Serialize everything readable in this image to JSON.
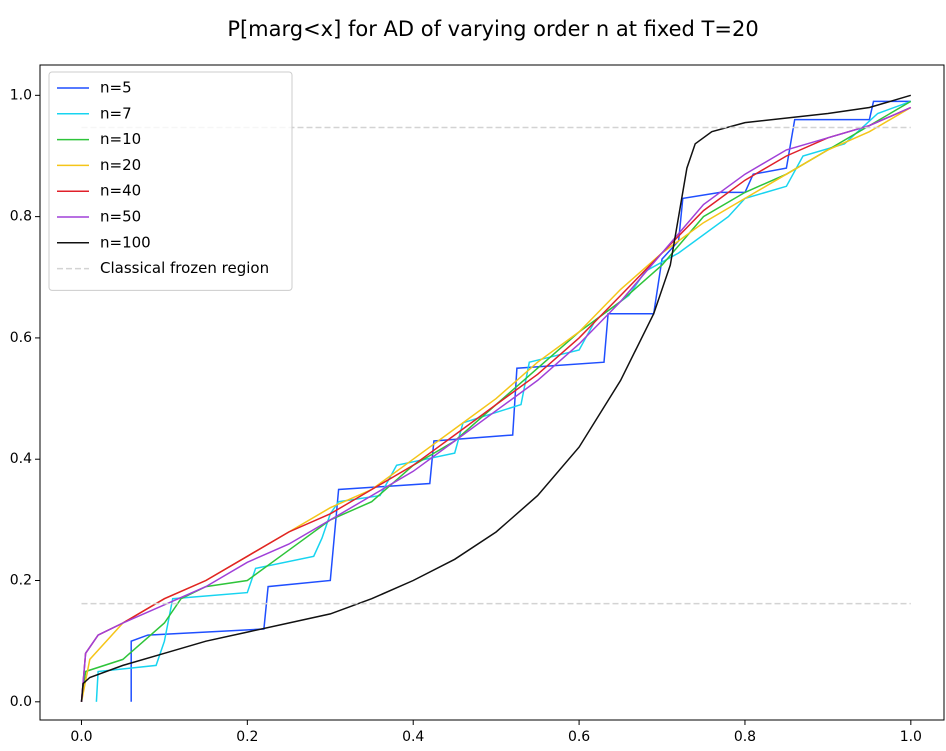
{
  "chart_data": {
    "type": "line",
    "title": "P[marg<x] for AD of varying order n at fixed T=20",
    "xlim": [
      -0.05,
      1.04
    ],
    "ylim": [
      -0.03,
      1.05
    ],
    "xticks": [
      {
        "value": 0,
        "label": "0.0"
      },
      0.2,
      0.4,
      0.6,
      0.8,
      {
        "value": 1,
        "label": "1.0"
      }
    ],
    "yticks": [
      {
        "value": 0,
        "label": "0.0"
      },
      0.2,
      0.4,
      0.6,
      0.8,
      {
        "value": 1,
        "label": "1.0"
      }
    ],
    "legend": "upper left",
    "series": [
      {
        "name": "n=5",
        "color": "#1f4fff",
        "x": [
          0.06,
          0.06,
          0.08,
          0.22,
          0.225,
          0.3,
          0.31,
          0.42,
          0.425,
          0.52,
          0.525,
          0.63,
          0.635,
          0.69,
          0.7,
          0.72,
          0.725,
          0.77,
          0.8,
          0.81,
          0.85,
          0.86,
          0.95,
          0.955,
          1.0
        ],
        "values": [
          0,
          0.1,
          0.11,
          0.12,
          0.19,
          0.2,
          0.35,
          0.36,
          0.43,
          0.44,
          0.55,
          0.56,
          0.64,
          0.64,
          0.73,
          0.76,
          0.83,
          0.84,
          0.84,
          0.87,
          0.88,
          0.96,
          0.96,
          0.99,
          0.99
        ]
      },
      {
        "name": "n=7",
        "color": "#17d4f0",
        "x": [
          0.018,
          0.02,
          0.09,
          0.1,
          0.11,
          0.2,
          0.21,
          0.28,
          0.29,
          0.3,
          0.31,
          0.36,
          0.38,
          0.45,
          0.46,
          0.53,
          0.54,
          0.6,
          0.62,
          0.66,
          0.68,
          0.72,
          0.78,
          0.8,
          0.85,
          0.87,
          0.92,
          0.96,
          1.0
        ],
        "values": [
          0,
          0.05,
          0.06,
          0.1,
          0.17,
          0.18,
          0.22,
          0.24,
          0.27,
          0.31,
          0.33,
          0.34,
          0.39,
          0.41,
          0.46,
          0.49,
          0.56,
          0.58,
          0.63,
          0.67,
          0.71,
          0.74,
          0.8,
          0.83,
          0.85,
          0.9,
          0.92,
          0.97,
          0.99
        ]
      },
      {
        "name": "n=10",
        "color": "#2ec43a",
        "x": [
          0,
          0.005,
          0.05,
          0.1,
          0.12,
          0.15,
          0.2,
          0.25,
          0.3,
          0.35,
          0.4,
          0.45,
          0.5,
          0.55,
          0.6,
          0.65,
          0.7,
          0.75,
          0.8,
          0.85,
          0.9,
          0.95,
          1.0
        ],
        "values": [
          0,
          0.05,
          0.07,
          0.13,
          0.17,
          0.19,
          0.2,
          0.25,
          0.3,
          0.33,
          0.39,
          0.43,
          0.49,
          0.55,
          0.61,
          0.66,
          0.72,
          0.8,
          0.84,
          0.87,
          0.91,
          0.95,
          0.99
        ]
      },
      {
        "name": "n=20",
        "color": "#f5c518",
        "x": [
          0,
          0.01,
          0.05,
          0.1,
          0.15,
          0.2,
          0.25,
          0.3,
          0.35,
          0.4,
          0.45,
          0.5,
          0.55,
          0.6,
          0.65,
          0.7,
          0.75,
          0.8,
          0.85,
          0.9,
          0.95,
          1.0
        ],
        "values": [
          0,
          0.07,
          0.13,
          0.17,
          0.2,
          0.24,
          0.28,
          0.32,
          0.35,
          0.4,
          0.45,
          0.5,
          0.56,
          0.61,
          0.68,
          0.74,
          0.79,
          0.83,
          0.87,
          0.91,
          0.94,
          0.98
        ]
      },
      {
        "name": "n=40",
        "color": "#e0202a",
        "x": [
          0,
          0.005,
          0.02,
          0.05,
          0.1,
          0.15,
          0.2,
          0.25,
          0.3,
          0.35,
          0.4,
          0.45,
          0.5,
          0.55,
          0.6,
          0.65,
          0.7,
          0.75,
          0.8,
          0.85,
          0.9,
          0.95,
          1.0
        ],
        "values": [
          0,
          0.08,
          0.11,
          0.13,
          0.17,
          0.2,
          0.24,
          0.28,
          0.31,
          0.35,
          0.39,
          0.44,
          0.49,
          0.54,
          0.6,
          0.67,
          0.74,
          0.81,
          0.86,
          0.9,
          0.93,
          0.95,
          0.98
        ]
      },
      {
        "name": "n=50",
        "color": "#a040d8",
        "x": [
          0,
          0.005,
          0.02,
          0.05,
          0.1,
          0.15,
          0.2,
          0.25,
          0.3,
          0.35,
          0.4,
          0.45,
          0.5,
          0.55,
          0.6,
          0.65,
          0.7,
          0.75,
          0.8,
          0.85,
          0.9,
          0.95,
          1.0
        ],
        "values": [
          0,
          0.08,
          0.11,
          0.13,
          0.16,
          0.19,
          0.23,
          0.26,
          0.3,
          0.34,
          0.38,
          0.43,
          0.48,
          0.53,
          0.59,
          0.66,
          0.74,
          0.82,
          0.87,
          0.91,
          0.93,
          0.95,
          0.98
        ]
      },
      {
        "name": "n=100",
        "color": "#111111",
        "x": [
          0,
          0.002,
          0.01,
          0.05,
          0.1,
          0.15,
          0.2,
          0.25,
          0.3,
          0.35,
          0.4,
          0.45,
          0.5,
          0.55,
          0.6,
          0.65,
          0.69,
          0.71,
          0.72,
          0.73,
          0.74,
          0.76,
          0.8,
          0.9,
          0.95,
          1.0
        ],
        "values": [
          0,
          0.03,
          0.04,
          0.06,
          0.08,
          0.1,
          0.115,
          0.13,
          0.145,
          0.17,
          0.2,
          0.235,
          0.28,
          0.34,
          0.42,
          0.53,
          0.64,
          0.72,
          0.8,
          0.88,
          0.92,
          0.94,
          0.955,
          0.97,
          0.98,
          1.0
        ]
      },
      {
        "name": "Classical frozen region",
        "color": "#d3d3d3",
        "dashed": true,
        "x": [
          0,
          1,
          null,
          0,
          1
        ],
        "values": [
          0.162,
          0.162,
          null,
          0.947,
          0.947
        ]
      }
    ]
  }
}
